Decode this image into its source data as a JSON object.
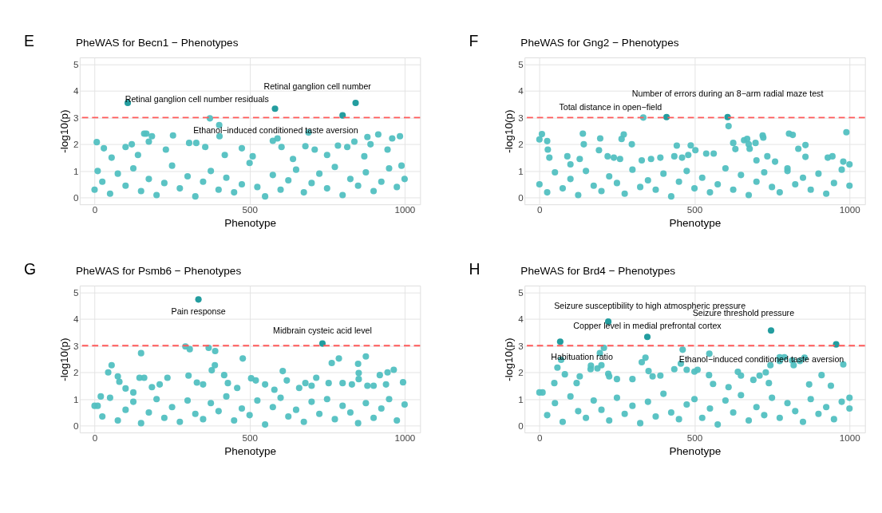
{
  "chart_data": [
    {
      "type": "scatter",
      "title": "PheWAS for Becn1 − Phenotypes",
      "xlabel": "Phenotype",
      "ylabel": "-log10(p)",
      "xlim": [
        -48,
        1050
      ],
      "ylim": [
        -0.25,
        5.25
      ],
      "xticks": [
        0,
        500,
        1000
      ],
      "yticks": [
        0,
        1,
        2,
        3,
        4,
        5
      ],
      "grid": true,
      "marker": "circle",
      "ref_lines": [
        {
          "axis": "y",
          "value": 3,
          "color": "#ff5a5a",
          "line_style": "dashed"
        }
      ],
      "annotations": [
        "E",
        {
          "text": "Retinal ganglion cell number residuals",
          "x": 582,
          "y": 3.33
        },
        {
          "text": "Retinal ganglion cell number",
          "x": 842,
          "y": 3.55
        },
        {
          "text": "Ethanol−induced conditioned taste aversion",
          "x": 800,
          "y": 3.08
        }
      ],
      "series": [
        {
          "color": "#52c0c1",
          "x": [
            0,
            25,
            50,
            75,
            100,
            125,
            150,
            175,
            200,
            225,
            250,
            275,
            300,
            325,
            350,
            375,
            400,
            425,
            450,
            475,
            500,
            525,
            550,
            575,
            600,
            625,
            650,
            675,
            700,
            725,
            750,
            775,
            800,
            825,
            850,
            875,
            900,
            925,
            950,
            975,
            1000,
            7,
            372,
            402,
            403,
            160,
            167,
            175,
            185,
            253,
            305,
            328,
            357,
            475,
            575,
            590,
            603,
            690,
            680,
            785,
            815,
            838,
            880,
            890,
            915,
            945,
            960,
            985,
            30,
            10,
            100,
            120,
            55,
            140,
            230,
            420,
            510,
            640,
            710,
            750,
            870,
            990
          ],
          "values": [
            0.3,
            0.6,
            0.15,
            0.9,
            0.45,
            1.1,
            0.25,
            0.7,
            0.1,
            0.55,
            1.2,
            0.35,
            0.8,
            0.05,
            0.6,
            1.0,
            0.3,
            0.75,
            0.2,
            0.5,
            1.3,
            0.4,
            0.05,
            0.85,
            0.3,
            0.65,
            1.05,
            0.2,
            0.55,
            0.9,
            0.35,
            1.15,
            0.1,
            0.7,
            0.45,
            0.95,
            0.25,
            0.6,
            1.1,
            0.4,
            0.7,
            2.08,
            2.97,
            2.72,
            2.3,
            2.4,
            2.4,
            2.1,
            2.3,
            2.33,
            2.05,
            2.05,
            1.9,
            1.85,
            2.13,
            2.22,
            1.9,
            2.44,
            1.93,
            1.95,
            1.9,
            2.1,
            2.27,
            2.0,
            2.37,
            1.8,
            2.22,
            2.3,
            1.85,
            1.0,
            1.9,
            2.0,
            1.5,
            1.6,
            1.8,
            1.6,
            1.55,
            1.45,
            1.8,
            1.6,
            1.55,
            1.2
          ]
        },
        {
          "color": "#17989a",
          "x": [
            107,
            582,
            800,
            842
          ],
          "values": [
            3.55,
            3.33,
            3.08,
            3.55
          ]
        }
      ]
    },
    {
      "type": "scatter",
      "title": "PheWAS for Gng2 − Phenotypes",
      "xlabel": "Phenotype",
      "ylabel": "-log10(p)",
      "xlim": [
        -48,
        1050
      ],
      "ylim": [
        -0.25,
        5.25
      ],
      "xticks": [
        0,
        500,
        1000
      ],
      "yticks": [
        0,
        1,
        2,
        3,
        4,
        5
      ],
      "grid": true,
      "marker": "circle",
      "ref_lines": [
        {
          "axis": "y",
          "value": 3,
          "color": "#ff5a5a",
          "line_style": "dashed"
        }
      ],
      "annotations": [
        "F",
        {
          "text": "Total distance in open−field",
          "x": 410,
          "y": 3.02
        },
        {
          "text": "Number of errors during an 8−arm radial maze test",
          "x": 607,
          "y": 3.02
        }
      ],
      "series": [
        {
          "color": "#52c0c1",
          "x": [
            0,
            25,
            50,
            75,
            100,
            125,
            150,
            175,
            200,
            225,
            250,
            275,
            300,
            325,
            350,
            375,
            400,
            425,
            450,
            475,
            500,
            525,
            550,
            575,
            600,
            625,
            650,
            675,
            700,
            725,
            750,
            775,
            800,
            825,
            850,
            875,
            900,
            925,
            950,
            975,
            1000,
            335,
            610,
            0,
            8,
            25,
            27,
            32,
            140,
            143,
            192,
            196,
            265,
            272,
            298,
            443,
            488,
            503,
            538,
            562,
            625,
            632,
            660,
            670,
            675,
            678,
            697,
            720,
            722,
            805,
            817,
            835,
            858,
            858,
            990,
            930,
            945,
            980,
            1000,
            90,
            100,
            130,
            220,
            240,
            260,
            330,
            360,
            390,
            435,
            460,
            480,
            700,
            735,
            760,
            800
          ],
          "values": [
            0.5,
            0.2,
            0.95,
            0.35,
            0.7,
            0.1,
            1.0,
            0.45,
            0.25,
            0.8,
            0.55,
            0.15,
            1.05,
            0.4,
            0.65,
            0.3,
            0.9,
            0.05,
            0.6,
            1.0,
            0.35,
            0.75,
            0.2,
            0.5,
            1.1,
            0.3,
            0.85,
            0.1,
            0.6,
            0.95,
            0.4,
            0.2,
            1.0,
            0.5,
            0.75,
            0.3,
            0.9,
            0.15,
            0.55,
            1.05,
            0.45,
            3.0,
            2.68,
            2.18,
            2.38,
            2.12,
            1.8,
            1.5,
            2.4,
            2.0,
            1.78,
            2.22,
            2.2,
            2.37,
            2.0,
            1.95,
            1.96,
            1.78,
            1.65,
            1.65,
            2.05,
            1.82,
            2.15,
            2.2,
            2.0,
            1.83,
            2.05,
            2.33,
            2.25,
            2.4,
            2.35,
            1.83,
            1.97,
            1.53,
            2.45,
            1.5,
            1.55,
            1.35,
            1.25,
            1.55,
            1.25,
            1.45,
            1.55,
            1.5,
            1.45,
            1.4,
            1.45,
            1.5,
            1.55,
            1.5,
            1.6,
            1.4,
            1.55,
            1.35,
            1.1
          ]
        },
        {
          "color": "#17989a",
          "x": [
            410,
            607
          ],
          "values": [
            3.02,
            3.02
          ]
        }
      ]
    },
    {
      "type": "scatter",
      "title": "PheWAS for Psmb6 − Phenotypes",
      "xlabel": "Phenotype",
      "ylabel": "-log10(p)",
      "xlim": [
        -48,
        1050
      ],
      "ylim": [
        -0.25,
        5.25
      ],
      "xticks": [
        0,
        500,
        1000
      ],
      "yticks": [
        0,
        1,
        2,
        3,
        4,
        5
      ],
      "grid": true,
      "marker": "circle",
      "ref_lines": [
        {
          "axis": "y",
          "value": 3,
          "color": "#ff5a5a",
          "line_style": "dashed"
        }
      ],
      "annotations": [
        "G",
        {
          "text": "Pain response",
          "x": 335,
          "y": 4.73
        },
        {
          "text": "Midbrain cysteic acid level",
          "x": 735,
          "y": 3.08
        }
      ],
      "series": [
        {
          "color": "#52c0c1",
          "x": [
            0,
            25,
            50,
            75,
            100,
            125,
            150,
            175,
            200,
            225,
            250,
            275,
            300,
            325,
            350,
            375,
            400,
            425,
            450,
            475,
            500,
            525,
            550,
            575,
            600,
            625,
            650,
            675,
            700,
            725,
            750,
            775,
            800,
            825,
            850,
            875,
            900,
            925,
            950,
            975,
            1000,
            293,
            307,
            368,
            389,
            150,
            44,
            55,
            75,
            80,
            145,
            160,
            235,
            303,
            378,
            388,
            418,
            478,
            505,
            607,
            620,
            715,
            765,
            788,
            850,
            852,
            852,
            875,
            920,
            945,
            965,
            995,
            10,
            20,
            100,
            125,
            185,
            210,
            330,
            350,
            430,
            460,
            520,
            550,
            580,
            660,
            680,
            700,
            755,
            800,
            830,
            880,
            900,
            940
          ],
          "values": [
            0.75,
            0.35,
            1.05,
            0.2,
            0.6,
            0.9,
            0.1,
            0.5,
            1.0,
            0.3,
            0.7,
            0.15,
            0.95,
            0.45,
            0.25,
            0.85,
            0.55,
            1.1,
            0.2,
            0.65,
            0.4,
            0.95,
            0.05,
            0.7,
            1.05,
            0.35,
            0.6,
            0.15,
            0.9,
            0.45,
            1.0,
            0.25,
            0.75,
            0.5,
            0.1,
            0.85,
            0.3,
            0.65,
            1.0,
            0.2,
            0.8,
            2.97,
            2.87,
            2.92,
            2.8,
            2.72,
            2.0,
            2.27,
            1.85,
            1.65,
            1.8,
            1.8,
            1.8,
            1.88,
            2.08,
            2.27,
            1.9,
            2.52,
            1.78,
            2.05,
            1.7,
            1.8,
            2.35,
            2.52,
            2.32,
            1.98,
            1.75,
            2.6,
            1.9,
            2.0,
            2.1,
            1.63,
            0.75,
            1.1,
            1.4,
            1.25,
            1.45,
            1.55,
            1.62,
            1.55,
            1.6,
            1.42,
            1.7,
            1.55,
            1.35,
            1.42,
            1.6,
            1.5,
            1.6,
            1.6,
            1.55,
            1.5,
            1.5,
            1.55
          ]
        },
        {
          "color": "#17989a",
          "x": [
            335,
            735
          ],
          "values": [
            4.73,
            3.08
          ]
        }
      ]
    },
    {
      "type": "scatter",
      "title": "PheWAS for Brd4 − Phenotypes",
      "xlabel": "Phenotype",
      "ylabel": "-log10(p)",
      "xlim": [
        -48,
        1050
      ],
      "ylim": [
        -0.25,
        5.25
      ],
      "xticks": [
        0,
        500,
        1000
      ],
      "yticks": [
        0,
        1,
        2,
        3,
        4,
        5
      ],
      "grid": true,
      "marker": "circle",
      "ref_lines": [
        {
          "axis": "y",
          "value": 3,
          "color": "#ff5a5a",
          "line_style": "dashed"
        }
      ],
      "annotations": [
        "H",
        {
          "text": "Habituation ratio",
          "x": 67,
          "y": 3.15
        },
        {
          "text": "Seizure susceptibility to high atmospheric pressure",
          "x": 222,
          "y": 3.9
        },
        {
          "text": "Copper level in medial prefrontal cortex",
          "x": 348,
          "y": 3.33
        },
        {
          "text": "Seizure threshold pressure",
          "x": 747,
          "y": 3.57
        },
        {
          "text": "Ethanol−induced conditioned taste aversion",
          "x": 957,
          "y": 3.05
        }
      ],
      "series": [
        {
          "color": "#52c0c1",
          "x": [
            0,
            25,
            50,
            75,
            100,
            125,
            150,
            175,
            200,
            225,
            250,
            275,
            300,
            325,
            350,
            375,
            400,
            425,
            450,
            475,
            500,
            525,
            550,
            575,
            600,
            625,
            650,
            675,
            700,
            725,
            750,
            775,
            800,
            825,
            850,
            875,
            900,
            925,
            950,
            975,
            1000,
            70,
            58,
            82,
            195,
            208,
            200,
            187,
            222,
            166,
            165,
            330,
            342,
            352,
            462,
            548,
            456,
            435,
            475,
            500,
            510,
            547,
            640,
            650,
            730,
            745,
            775,
            775,
            790,
            815,
            820,
            840,
            855,
            980,
            910,
            48,
            120,
            130,
            225,
            250,
            300,
            365,
            390,
            560,
            610,
            690,
            710,
            740,
            870,
            940,
            1000,
            10
          ],
          "values": [
            1.25,
            0.4,
            0.85,
            0.15,
            1.1,
            0.55,
            0.3,
            0.95,
            0.6,
            0.2,
            1.05,
            0.45,
            0.75,
            0.1,
            0.9,
            0.35,
            1.2,
            0.5,
            0.25,
            0.8,
            1.0,
            0.3,
            0.65,
            0.05,
            0.95,
            0.5,
            1.15,
            0.2,
            0.7,
            0.4,
            1.05,
            0.3,
            0.85,
            0.55,
            0.15,
            1.0,
            0.45,
            0.7,
            0.25,
            0.9,
            0.65,
            2.47,
            2.18,
            1.93,
            2.72,
            2.92,
            2.27,
            2.15,
            1.95,
            2.25,
            2.12,
            2.38,
            2.55,
            2.05,
            2.85,
            2.7,
            2.33,
            2.12,
            2.1,
            2.03,
            2.1,
            1.9,
            2.02,
            1.88,
            2.0,
            2.27,
            2.57,
            2.43,
            2.57,
            2.45,
            2.27,
            2.43,
            2.55,
            2.3,
            1.9,
            1.6,
            1.6,
            1.85,
            1.85,
            1.75,
            1.75,
            1.85,
            1.88,
            1.57,
            1.45,
            1.72,
            1.88,
            1.6,
            1.55,
            1.5,
            1.05,
            1.25
          ]
        },
        {
          "color": "#17989a",
          "x": [
            67,
            222,
            348,
            747,
            957
          ],
          "values": [
            3.15,
            3.9,
            3.33,
            3.57,
            3.05
          ]
        }
      ]
    }
  ]
}
